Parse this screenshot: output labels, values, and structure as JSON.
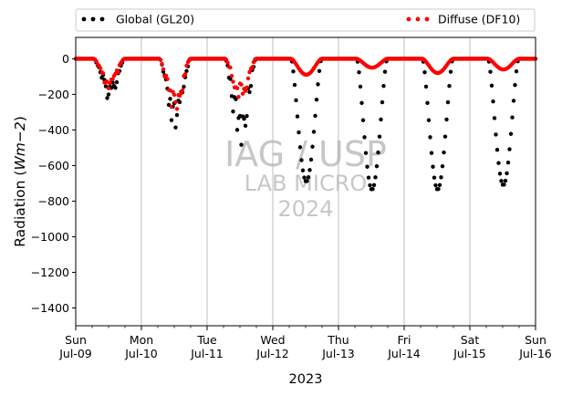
{
  "chart_data": {
    "type": "scatter",
    "title": "",
    "xlabel": "2023",
    "ylabel_prefix": "Radiation (",
    "ylabel_unit": "Wm−2",
    "ylabel_suffix": ")",
    "ylim": [
      -1500,
      120
    ],
    "yticks": [
      0,
      -200,
      -400,
      -600,
      -800,
      -1000,
      -1200,
      -1400
    ],
    "xlim": [
      "2023-07-09",
      "2023-07-16"
    ],
    "xticks": [
      {
        "date": "2023-07-09",
        "day": "Sun",
        "date_label": "Jul-09"
      },
      {
        "date": "2023-07-10",
        "day": "Mon",
        "date_label": "Jul-10"
      },
      {
        "date": "2023-07-11",
        "day": "Tue",
        "date_label": "Jul-11"
      },
      {
        "date": "2023-07-12",
        "day": "Wed",
        "date_label": "Jul-12"
      },
      {
        "date": "2023-07-13",
        "day": "Thu",
        "date_label": "Jul-13"
      },
      {
        "date": "2023-07-14",
        "day": "Fri",
        "date_label": "Jul-14"
      },
      {
        "date": "2023-07-15",
        "day": "Sat",
        "date_label": "Jul-15"
      },
      {
        "date": "2023-07-16",
        "day": "Sun",
        "date_label": "Jul-16"
      }
    ],
    "grid": "x-major",
    "legend_placement": "top",
    "watermark": {
      "line1": "IAG / USP",
      "line2": "LAB MICRO",
      "line3": "2024"
    },
    "series": [
      {
        "name": "Global (GL20)",
        "color": "#000000",
        "daily_peak": [
          {
            "date": "2023-07-09",
            "peak": -230
          },
          {
            "date": "2023-07-10",
            "peak": -440
          },
          {
            "date": "2023-07-11",
            "peak": -500
          },
          {
            "date": "2023-07-12",
            "peak": -690
          },
          {
            "date": "2023-07-13",
            "peak": -735
          },
          {
            "date": "2023-07-14",
            "peak": -735
          },
          {
            "date": "2023-07-15",
            "peak": -710
          }
        ]
      },
      {
        "name": "Diffuse (DF10)",
        "color": "#ff0000",
        "daily_peak": [
          {
            "date": "2023-07-09",
            "peak": -175
          },
          {
            "date": "2023-07-10",
            "peak": -305
          },
          {
            "date": "2023-07-11",
            "peak": -230
          },
          {
            "date": "2023-07-12",
            "peak": -90
          },
          {
            "date": "2023-07-13",
            "peak": -50
          },
          {
            "date": "2023-07-14",
            "peak": -80
          },
          {
            "date": "2023-07-15",
            "peak": -60
          }
        ]
      }
    ]
  }
}
